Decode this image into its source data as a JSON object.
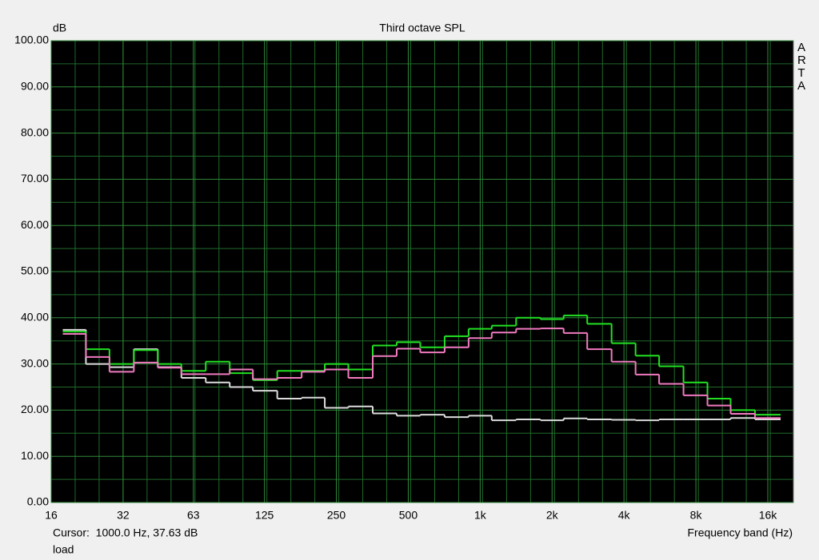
{
  "chart_data": {
    "type": "step",
    "title": "Third octave SPL",
    "y_label": "dB",
    "x_label": "Frequency band (Hz)",
    "brand": "ARTA",
    "cursor_text": "Cursor:  1000.0 Hz, 37.63 dB",
    "footer_text": "load",
    "log_x": true,
    "grid": true,
    "xlim": [
      16,
      20480
    ],
    "ylim": [
      0,
      100
    ],
    "xticks": [
      16,
      32,
      63,
      125,
      250,
      500,
      {
        "value": 1000,
        "label": "1k"
      },
      {
        "value": 2000,
        "label": "2k"
      },
      {
        "value": 4000,
        "label": "4k"
      },
      {
        "value": 8000,
        "label": "8k"
      },
      {
        "value": 16000,
        "label": "16k"
      }
    ],
    "yticks": [
      {
        "value": 0,
        "label": "0.00"
      },
      {
        "value": 10,
        "label": "10.00"
      },
      {
        "value": 20,
        "label": "20.00"
      },
      {
        "value": 30,
        "label": "30.00"
      },
      {
        "value": 40,
        "label": "40.00"
      },
      {
        "value": 50,
        "label": "50.00"
      },
      {
        "value": 60,
        "label": "60.00"
      },
      {
        "value": 70,
        "label": "70.00"
      },
      {
        "value": 80,
        "label": "80.00"
      },
      {
        "value": 90,
        "label": "90.00"
      },
      {
        "value": 100,
        "label": "100.00"
      }
    ],
    "x": [
      20,
      25,
      31.5,
      40,
      50,
      63,
      80,
      100,
      125,
      160,
      200,
      250,
      315,
      400,
      500,
      630,
      800,
      1000,
      1250,
      1600,
      2000,
      2500,
      3150,
      4000,
      5000,
      6300,
      8000,
      10000,
      12500,
      16000
    ],
    "series": [
      {
        "color": "#dcdcdc",
        "values": [
          37.4,
          30,
          29.3,
          33.2,
          29.3,
          27,
          26,
          25,
          24.2,
          22.5,
          22.7,
          20.5,
          20.8,
          19.3,
          18.8,
          19,
          18.5,
          18.8,
          17.8,
          18,
          17.8,
          18.2,
          18,
          17.9,
          17.8,
          18,
          18,
          18,
          18.3,
          18
        ]
      },
      {
        "color": "#22e022",
        "values": [
          37,
          33.2,
          30,
          33,
          30,
          28.5,
          30.5,
          28,
          26.5,
          28.5,
          28.5,
          30,
          28.8,
          34,
          34.7,
          33.6,
          36,
          37.6,
          38.3,
          40,
          39.7,
          40.5,
          38.7,
          34.5,
          31.8,
          29.5,
          26,
          22.5,
          20,
          19
        ]
      },
      {
        "color": "#f07ac0",
        "values": [
          36.5,
          31.5,
          28.3,
          30.3,
          29.2,
          27.8,
          27.8,
          28.8,
          26.7,
          27,
          28.3,
          28.8,
          27,
          31.7,
          33.3,
          32.5,
          33.6,
          35.6,
          36.8,
          37.6,
          37.7,
          36.7,
          33.2,
          30.5,
          27.7,
          25.7,
          23.2,
          21,
          19.2,
          18.3
        ]
      }
    ]
  }
}
